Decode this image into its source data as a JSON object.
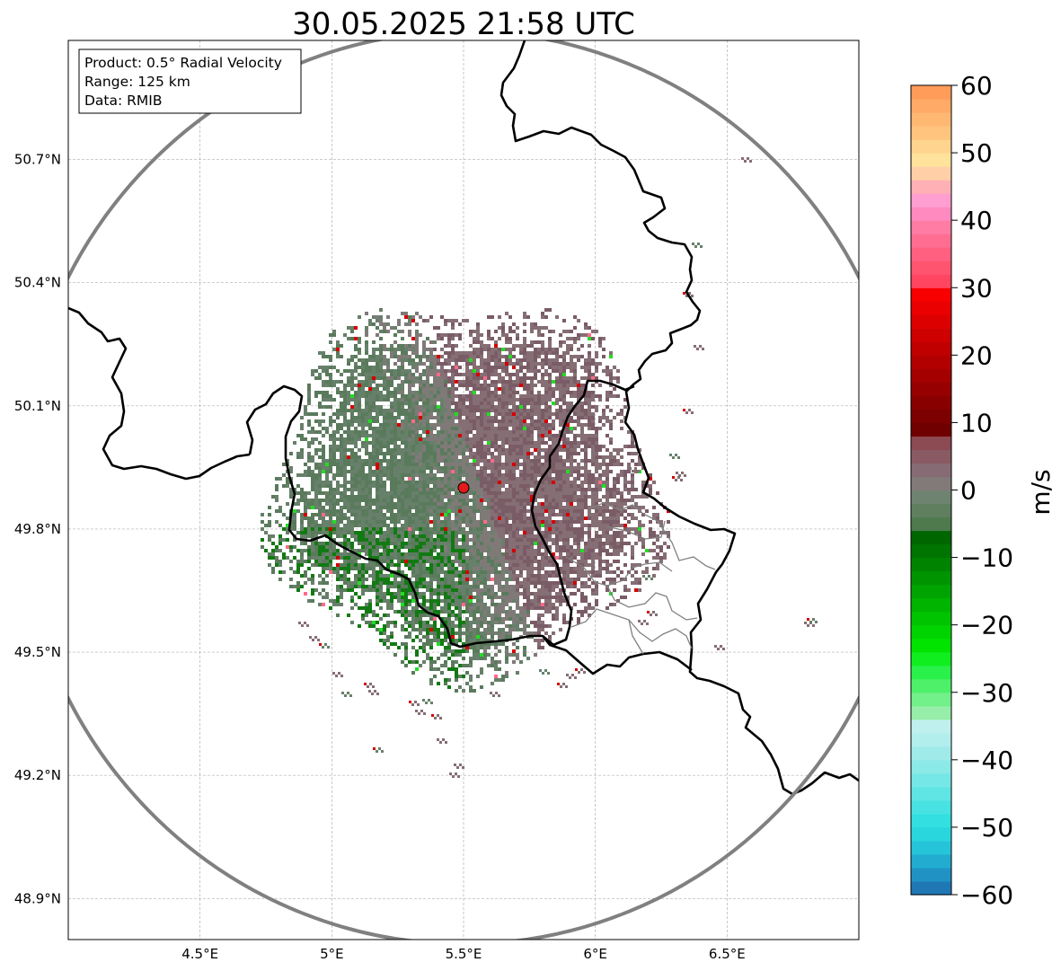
{
  "title": "30.05.2025 21:58 UTC",
  "info_box": {
    "product": "Product: 0.5° Radial Velocity",
    "range": "Range: 125 km",
    "data": "Data: RMIB"
  },
  "map": {
    "lon_range": [
      4.0,
      7.0
    ],
    "lat_range": [
      48.8,
      50.99
    ],
    "x_ticks": [
      {
        "lon": 4.5,
        "label": "4.5°E"
      },
      {
        "lon": 5.0,
        "label": "5°E"
      },
      {
        "lon": 5.5,
        "label": "5.5°E"
      },
      {
        "lon": 6.0,
        "label": "6°E"
      },
      {
        "lon": 6.5,
        "label": "6.5°E"
      }
    ],
    "y_ticks": [
      {
        "lat": 50.7,
        "label": "50.7°N"
      },
      {
        "lat": 50.4,
        "label": "50.4°N"
      },
      {
        "lat": 50.1,
        "label": "50.1°N"
      },
      {
        "lat": 49.8,
        "label": "49.8°N"
      },
      {
        "lat": 49.5,
        "label": "49.5°N"
      },
      {
        "lat": 49.2,
        "label": "49.2°N"
      },
      {
        "lat": 48.9,
        "label": "48.9°N"
      }
    ],
    "gridlines": true,
    "radar_site": {
      "lon": 5.505,
      "lat": 49.915
    },
    "range_ring_km": 125,
    "range_ring_color": "#808080",
    "site_marker_color": "#e31a1c",
    "border_color": "#000000",
    "admin_border_color": "#808080"
  },
  "colorbar": {
    "label": "m/s",
    "min": -60,
    "max": 60,
    "ticks": [
      {
        "value": 60,
        "label": "60"
      },
      {
        "value": 50,
        "label": "50"
      },
      {
        "value": 40,
        "label": "40"
      },
      {
        "value": 30,
        "label": "30"
      },
      {
        "value": 20,
        "label": "20"
      },
      {
        "value": 10,
        "label": "10"
      },
      {
        "value": 0,
        "label": "0"
      },
      {
        "value": -10,
        "label": "−10"
      },
      {
        "value": -20,
        "label": "−20"
      },
      {
        "value": -30,
        "label": "−30"
      },
      {
        "value": -40,
        "label": "−40"
      },
      {
        "value": -50,
        "label": "−50"
      },
      {
        "value": -60,
        "label": "−60"
      }
    ],
    "color_stops": [
      {
        "from": -60,
        "to": -58,
        "color": "#1f78b4"
      },
      {
        "from": -58,
        "to": -56,
        "color": "#2093c4"
      },
      {
        "from": -56,
        "to": -54,
        "color": "#22acd0"
      },
      {
        "from": -54,
        "to": -52,
        "color": "#26c4d8"
      },
      {
        "from": -52,
        "to": -50,
        "color": "#2ad6de"
      },
      {
        "from": -50,
        "to": -48,
        "color": "#33dfe0"
      },
      {
        "from": -48,
        "to": -46,
        "color": "#48e2e2"
      },
      {
        "from": -46,
        "to": -44,
        "color": "#5fe5e4"
      },
      {
        "from": -44,
        "to": -42,
        "color": "#75e7e6"
      },
      {
        "from": -42,
        "to": -40,
        "color": "#8be9e8"
      },
      {
        "from": -40,
        "to": -38,
        "color": "#a0ebea"
      },
      {
        "from": -38,
        "to": -36,
        "color": "#b1eeec"
      },
      {
        "from": -36,
        "to": -34,
        "color": "#c0f0ee"
      },
      {
        "from": -34,
        "to": -32,
        "color": "#96eea8"
      },
      {
        "from": -32,
        "to": -30,
        "color": "#72f08a"
      },
      {
        "from": -30,
        "to": -28,
        "color": "#4ef06a"
      },
      {
        "from": -28,
        "to": -26,
        "color": "#2af04a"
      },
      {
        "from": -26,
        "to": -24,
        "color": "#10ee20"
      },
      {
        "from": -24,
        "to": -22,
        "color": "#00e400"
      },
      {
        "from": -22,
        "to": -20,
        "color": "#00d400"
      },
      {
        "from": -20,
        "to": -18,
        "color": "#00c400"
      },
      {
        "from": -18,
        "to": -16,
        "color": "#00b400"
      },
      {
        "from": -16,
        "to": -14,
        "color": "#00a400"
      },
      {
        "from": -14,
        "to": -12,
        "color": "#009400"
      },
      {
        "from": -12,
        "to": -10,
        "color": "#008400"
      },
      {
        "from": -10,
        "to": -8,
        "color": "#007400"
      },
      {
        "from": -8,
        "to": -6,
        "color": "#006600"
      },
      {
        "from": -6,
        "to": -4,
        "color": "#4e7a4e"
      },
      {
        "from": -4,
        "to": -2,
        "color": "#5f7f5f"
      },
      {
        "from": -2,
        "to": 0,
        "color": "#6e8470"
      },
      {
        "from": 0,
        "to": 2,
        "color": "#827a78"
      },
      {
        "from": 2,
        "to": 4,
        "color": "#876b74"
      },
      {
        "from": 4,
        "to": 6,
        "color": "#8a5a62"
      },
      {
        "from": 6,
        "to": 8,
        "color": "#8c4a52"
      },
      {
        "from": 8,
        "to": 10,
        "color": "#700000"
      },
      {
        "from": 10,
        "to": 12,
        "color": "#7c0000"
      },
      {
        "from": 12,
        "to": 14,
        "color": "#880000"
      },
      {
        "from": 14,
        "to": 16,
        "color": "#960000"
      },
      {
        "from": 16,
        "to": 18,
        "color": "#a40000"
      },
      {
        "from": 18,
        "to": 20,
        "color": "#b20000"
      },
      {
        "from": 20,
        "to": 22,
        "color": "#c00000"
      },
      {
        "from": 22,
        "to": 24,
        "color": "#ce0000"
      },
      {
        "from": 24,
        "to": 26,
        "color": "#dc0000"
      },
      {
        "from": 26,
        "to": 28,
        "color": "#ea0000"
      },
      {
        "from": 28,
        "to": 30,
        "color": "#f80000"
      },
      {
        "from": 30,
        "to": 32,
        "color": "#ff4560"
      },
      {
        "from": 32,
        "to": 34,
        "color": "#ff5470"
      },
      {
        "from": 34,
        "to": 36,
        "color": "#ff6080"
      },
      {
        "from": 36,
        "to": 38,
        "color": "#ff6e90"
      },
      {
        "from": 38,
        "to": 40,
        "color": "#ff7ca4"
      },
      {
        "from": 40,
        "to": 42,
        "color": "#ff8ac0"
      },
      {
        "from": 42,
        "to": 44,
        "color": "#ff9ed0"
      },
      {
        "from": 44,
        "to": 46,
        "color": "#ffb0b4"
      },
      {
        "from": 46,
        "to": 48,
        "color": "#ffd0a8"
      },
      {
        "from": 48,
        "to": 50,
        "color": "#ffe29c"
      },
      {
        "from": 50,
        "to": 52,
        "color": "#ffd48e"
      },
      {
        "from": 52,
        "to": 54,
        "color": "#ffc47e"
      },
      {
        "from": 54,
        "to": 56,
        "color": "#ffb872"
      },
      {
        "from": 56,
        "to": 58,
        "color": "#ffaa66"
      },
      {
        "from": 58,
        "to": 60,
        "color": "#ff9c5a"
      }
    ]
  },
  "echo_colors": {
    "outbound_main": "#856e74",
    "outbound_dark": "#7a5c66",
    "inbound_main": "#67806a",
    "inbound_dark": "#5a7a5c",
    "neutral": "#7f7a78",
    "speckle_red": "#d40000",
    "speckle_green": "#22dd22",
    "speckle_darkgreen": "#127a12",
    "speckle_pink": "#ff6a8a"
  }
}
